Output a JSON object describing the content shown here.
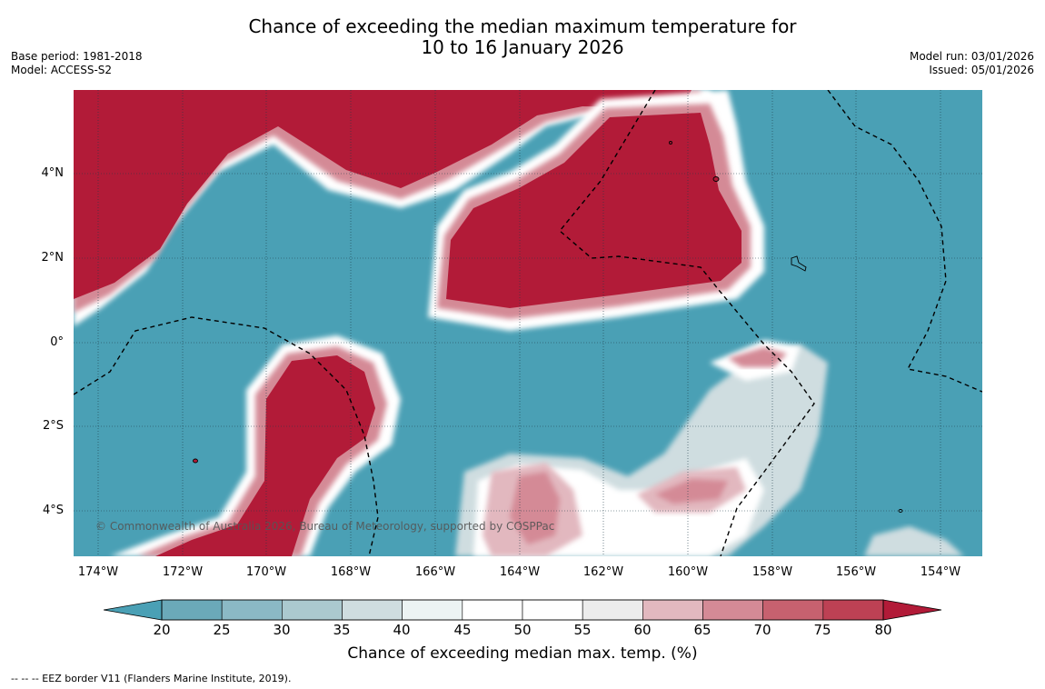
{
  "title": {
    "line1": "Chance of exceeding the median maximum temperature for",
    "line2": "10 to 16 January 2026"
  },
  "meta_left": {
    "base_period": "Base period: 1981-2018",
    "model": "Model: ACCESS-S2"
  },
  "meta_right": {
    "model_run": "Model run: 03/01/2026",
    "issued": "Issued: 05/01/2026"
  },
  "map": {
    "lat_labels": [
      "4°N",
      "2°N",
      "0°",
      "2°S",
      "4°S"
    ],
    "lon_labels": [
      "174°W",
      "172°W",
      "170°W",
      "168°W",
      "166°W",
      "164°W",
      "162°W",
      "160°W",
      "158°W",
      "156°W",
      "154°W"
    ],
    "copyright": "© Commonwealth of Australia 2026, Bureau of Meteorology, supported by COSPPac",
    "colors": {
      "low": "#4aa0b5",
      "high": "#b21b38",
      "neutral": "#ffffff"
    }
  },
  "colorbar": {
    "ticks": [
      "20",
      "25",
      "30",
      "35",
      "40",
      "45",
      "50",
      "55",
      "60",
      "65",
      "70",
      "75",
      "80"
    ],
    "colors": [
      "#6ba9b9",
      "#8bb9c5",
      "#abc9cf",
      "#cfdde0",
      "#ecf3f3",
      "#ffffff",
      "#ffffff",
      "#ececec",
      "#e2b8bf",
      "#d48a96",
      "#c7616f",
      "#bd4154"
    ],
    "low_extend_color": "#4aa0b5",
    "high_extend_color": "#b21b38",
    "label": "Chance of exceeding median max. temp. (%)"
  },
  "footnote": "-- -- -- EEZ border V11 (Flanders Marine Institute, 2019)."
}
